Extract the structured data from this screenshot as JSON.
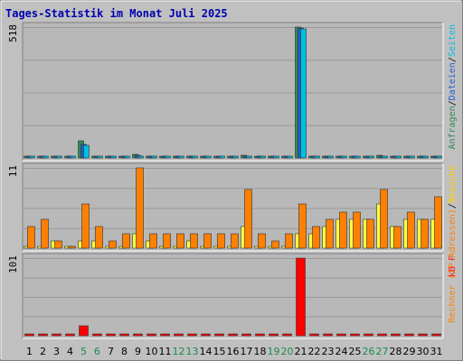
{
  "chart_data": {
    "type": "bar",
    "title": "Tages-Statistik im Monat Juli 2025",
    "categories": [
      "1",
      "2",
      "3",
      "4",
      "5",
      "6",
      "7",
      "8",
      "9",
      "10",
      "11",
      "12",
      "13",
      "14",
      "15",
      "16",
      "17",
      "18",
      "19",
      "20",
      "21",
      "22",
      "23",
      "24",
      "25",
      "26",
      "27",
      "28",
      "29",
      "30",
      "31"
    ],
    "weekend_days": [
      "5",
      "6",
      "12",
      "13",
      "19",
      "20",
      "26",
      "27"
    ],
    "panels": [
      {
        "id": "hits",
        "scale_label": "518",
        "ymax": 518,
        "side_label_parts": [
          {
            "text": "Anfragen",
            "color": "#2e8b57"
          },
          {
            "text": "/",
            "color": "#000000"
          },
          {
            "text": "Dateien",
            "color": "#2060d0"
          },
          {
            "text": "/",
            "color": "#000000"
          },
          {
            "text": "Seiten",
            "color": "#00c0e0"
          }
        ],
        "series": [
          {
            "name": "Anfragen",
            "color": "#2e8b57",
            "values": [
              6,
              8,
              5,
              4,
              68,
              6,
              4,
              4,
              14,
              4,
              4,
              4,
              4,
              4,
              4,
              4,
              10,
              4,
              4,
              4,
              518,
              6,
              8,
              7,
              8,
              8,
              10,
              6,
              8,
              8,
              8
            ]
          },
          {
            "name": "Dateien",
            "color": "#2060d0",
            "values": [
              5,
              7,
              4,
              3,
              52,
              5,
              3,
              3,
              10,
              3,
              3,
              3,
              3,
              3,
              3,
              3,
              7,
              3,
              3,
              3,
              514,
              5,
              6,
              5,
              6,
              6,
              8,
              5,
              6,
              6,
              6
            ]
          },
          {
            "name": "Seiten",
            "color": "#00c0e0",
            "values": [
              4,
              6,
              3,
              2,
              50,
              4,
              2,
              2,
              8,
              2,
              2,
              2,
              2,
              2,
              2,
              2,
              5,
              2,
              2,
              2,
              510,
              4,
              5,
              4,
              5,
              5,
              6,
              4,
              5,
              5,
              5
            ]
          }
        ]
      },
      {
        "id": "visits",
        "scale_label": "11",
        "ymax": 11,
        "side_label_parts": [
          {
            "text": "Rechner (IP-Adressen)",
            "color": "#ff8000"
          },
          {
            "text": "/",
            "color": "#000000"
          },
          {
            "text": "Besuche",
            "color": "#ffd000"
          }
        ],
        "series": [
          {
            "name": "Besuche",
            "color": "#ffff40",
            "values": [
              0,
              0,
              1,
              0,
              1,
              1,
              0,
              0,
              2,
              1,
              0,
              0,
              1,
              0,
              0,
              0,
              3,
              0,
              0,
              0,
              2,
              2,
              3,
              4,
              4,
              4,
              6,
              3,
              4,
              4,
              4
            ]
          },
          {
            "name": "Rechner (IP-Adressen)",
            "color": "#ff8000",
            "values": [
              3,
              4,
              1,
              0,
              6,
              3,
              1,
              2,
              11,
              2,
              2,
              2,
              2,
              2,
              2,
              2,
              8,
              2,
              1,
              2,
              6,
              3,
              4,
              5,
              5,
              4,
              8,
              3,
              5,
              4,
              7
            ]
          }
        ]
      },
      {
        "id": "kb",
        "scale_label": "101",
        "ymax": 101,
        "side_label_parts": [
          {
            "text": "kB F",
            "color": "#ff2020"
          }
        ],
        "series": [
          {
            "name": "kB F",
            "color": "#ff0000",
            "values": [
              1,
              1,
              1,
              0,
              13,
              1,
              0,
              0,
              2,
              0,
              0,
              0,
              0,
              0,
              0,
              0,
              2,
              0,
              0,
              0,
              101,
              0,
              1,
              0,
              0,
              0,
              1,
              0,
              0,
              0,
              1
            ]
          }
        ]
      }
    ]
  }
}
